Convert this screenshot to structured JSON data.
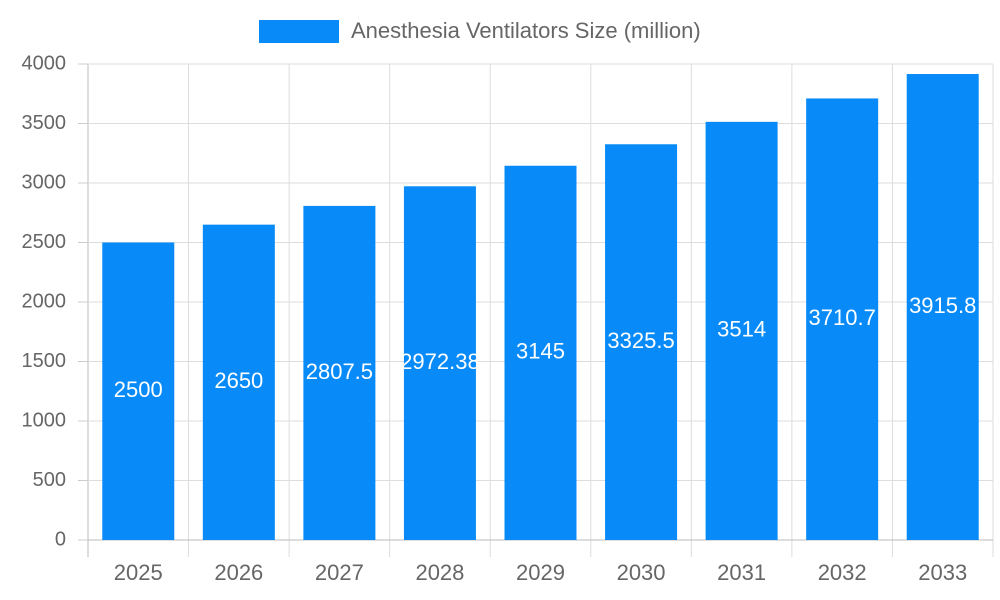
{
  "chart_data": {
    "type": "bar",
    "categories": [
      "2025",
      "2026",
      "2027",
      "2028",
      "2029",
      "2030",
      "2031",
      "2032",
      "2033"
    ],
    "series": [
      {
        "name": "Anesthesia Ventilators Size (million)",
        "color": "#088bf8",
        "values": [
          2500,
          2650,
          2807.5,
          2972.38,
          3145,
          3325.5,
          3514,
          3710.7,
          3915.8
        ]
      }
    ],
    "ylim": [
      0,
      4000
    ],
    "yticks": [
      0,
      500,
      1000,
      1500,
      2000,
      2500,
      3000,
      3500,
      4000
    ],
    "grid": true,
    "legend": "top",
    "value_labels_color": "#ffffff"
  }
}
